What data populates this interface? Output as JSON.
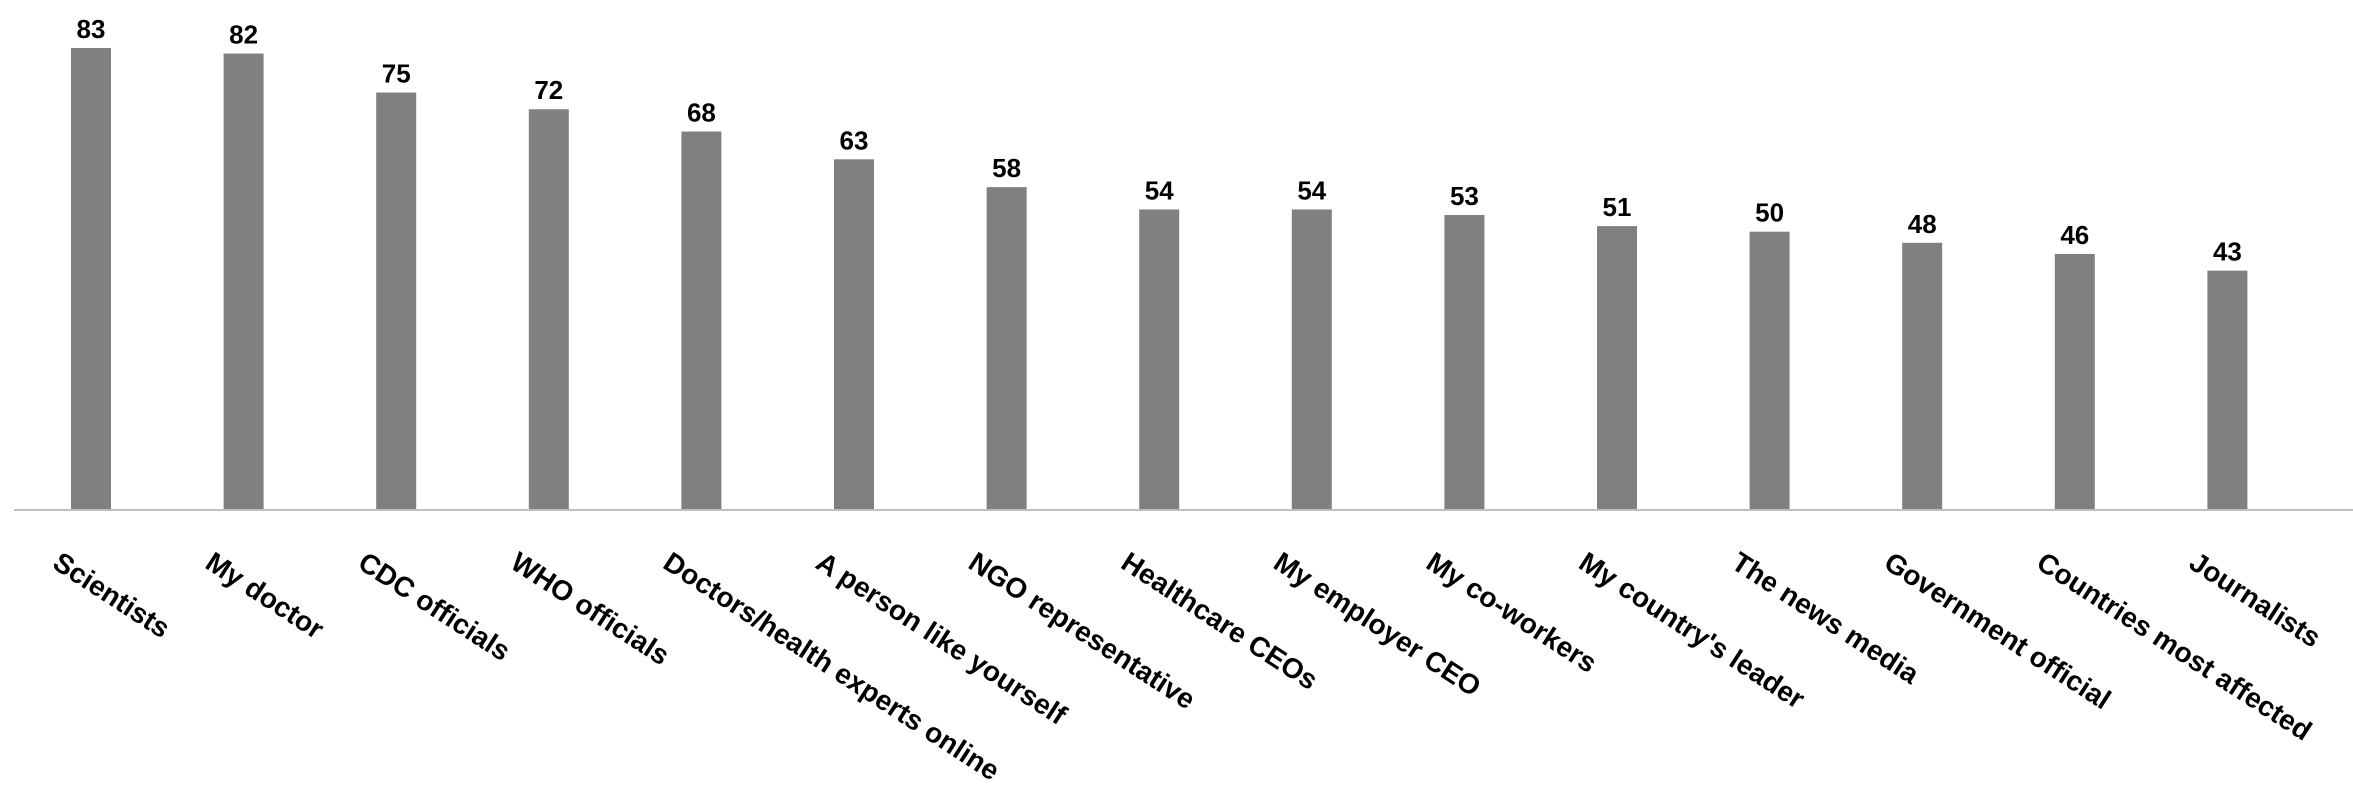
{
  "chart_data": {
    "type": "bar",
    "title": "",
    "xlabel": "",
    "ylabel": "",
    "categories": [
      "Scientists",
      "My doctor",
      "CDC officials",
      "WHO officials",
      "Doctors/health experts online",
      "A person like yourself",
      "NGO representative",
      "Healthcare CEOs",
      "My employer CEO",
      "My co-workers",
      "My country's leader",
      "The news media",
      "Government official",
      "Countries most affected",
      "Journalists"
    ],
    "values": [
      83,
      82,
      75,
      72,
      68,
      63,
      58,
      54,
      54,
      53,
      51,
      50,
      48,
      46,
      43
    ],
    "ylim": [
      0,
      83
    ],
    "grid": false,
    "legend": "none",
    "data_labels": true,
    "bar_color": "#808080"
  }
}
